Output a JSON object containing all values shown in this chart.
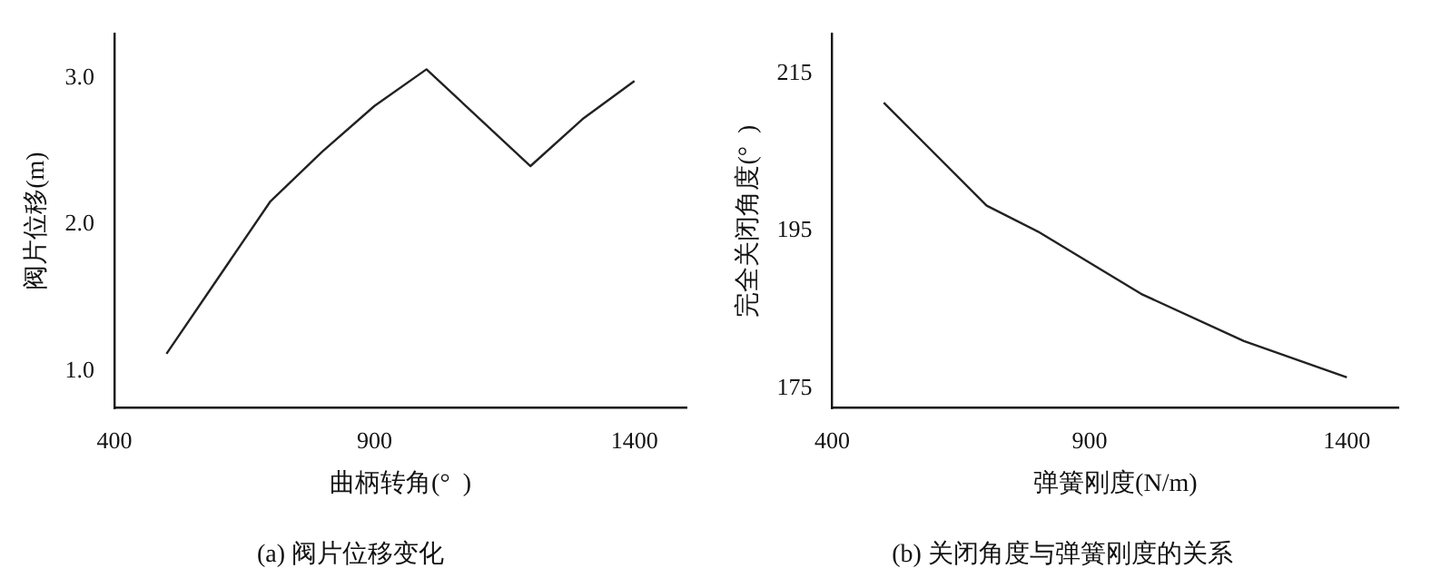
{
  "chart_data": [
    {
      "type": "line",
      "title": "(a) 阀片位移变化",
      "xlabel": "曲柄转角(°  )",
      "ylabel": "阀片位移(m)",
      "x": [
        500,
        700,
        800,
        900,
        1000,
        1200,
        1300,
        1400
      ],
      "series": [
        {
          "color": "#222222",
          "values": [
            1.12,
            2.16,
            2.5,
            2.81,
            3.06,
            2.4,
            2.72,
            2.98
          ]
        }
      ],
      "xlim": [
        400,
        1500
      ],
      "xticks": [
        400,
        900,
        1400
      ],
      "ylim": [
        0.75,
        3.3
      ],
      "yticks": [
        {
          "value": 1,
          "label": "1.0"
        },
        {
          "value": 2,
          "label": "2.0"
        },
        {
          "value": 3,
          "label": "3.0"
        }
      ],
      "grid": false,
      "legend": false,
      "marker": "none",
      "line_style": "solid"
    },
    {
      "type": "line",
      "title": "(b) 关闭角度与弹簧刚度的关系",
      "xlabel": "弹簧刚度(N/m)",
      "ylabel": "完全关闭角度(°  )",
      "x": [
        500,
        700,
        800,
        1000,
        1200,
        1400
      ],
      "series": [
        {
          "color": "#222222",
          "values": [
            211.3,
            198.2,
            194.9,
            187.0,
            181.0,
            176.4
          ]
        }
      ],
      "xlim": [
        400,
        1500
      ],
      "xticks": [
        400,
        900,
        1400
      ],
      "ylim": [
        172.5,
        220
      ],
      "yticks": [
        175,
        195,
        215
      ],
      "grid": false,
      "legend": false,
      "marker": "none",
      "line_style": "solid"
    }
  ]
}
